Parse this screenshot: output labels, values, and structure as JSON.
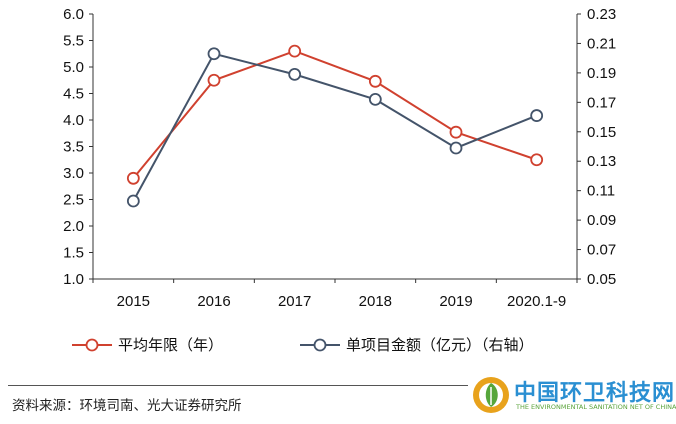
{
  "chart_data": {
    "type": "line",
    "categories": [
      "2015",
      "2016",
      "2017",
      "2018",
      "2019",
      "2020.1-9"
    ],
    "left_axis": {
      "ylim": [
        1.0,
        6.0
      ],
      "ticks": [
        "1.0",
        "1.5",
        "2.0",
        "2.5",
        "3.0",
        "3.5",
        "4.0",
        "4.5",
        "5.0",
        "5.5",
        "6.0"
      ]
    },
    "right_axis": {
      "ylim": [
        0.05,
        0.23
      ],
      "ticks": [
        "0.05",
        "0.07",
        "0.09",
        "0.11",
        "0.13",
        "0.15",
        "0.17",
        "0.19",
        "0.21",
        "0.23"
      ]
    },
    "series": [
      {
        "name": "平均年限（年）",
        "axis": "left",
        "color": "#d0412f",
        "values": [
          2.9,
          4.75,
          5.3,
          4.73,
          3.77,
          3.25
        ]
      },
      {
        "name": "单项目金额（亿元）（右轴）",
        "axis": "right",
        "color": "#44546a",
        "values": [
          0.103,
          0.203,
          0.189,
          0.172,
          0.139,
          0.161
        ]
      }
    ],
    "grid": false,
    "legend_position": "bottom"
  },
  "source_text": "资料来源：环境司南、光大证券研究所",
  "watermark": {
    "text": "中国环卫科技网",
    "subtext": "THE ENVIRONMENTAL SANITATION NET OF CHINA"
  }
}
